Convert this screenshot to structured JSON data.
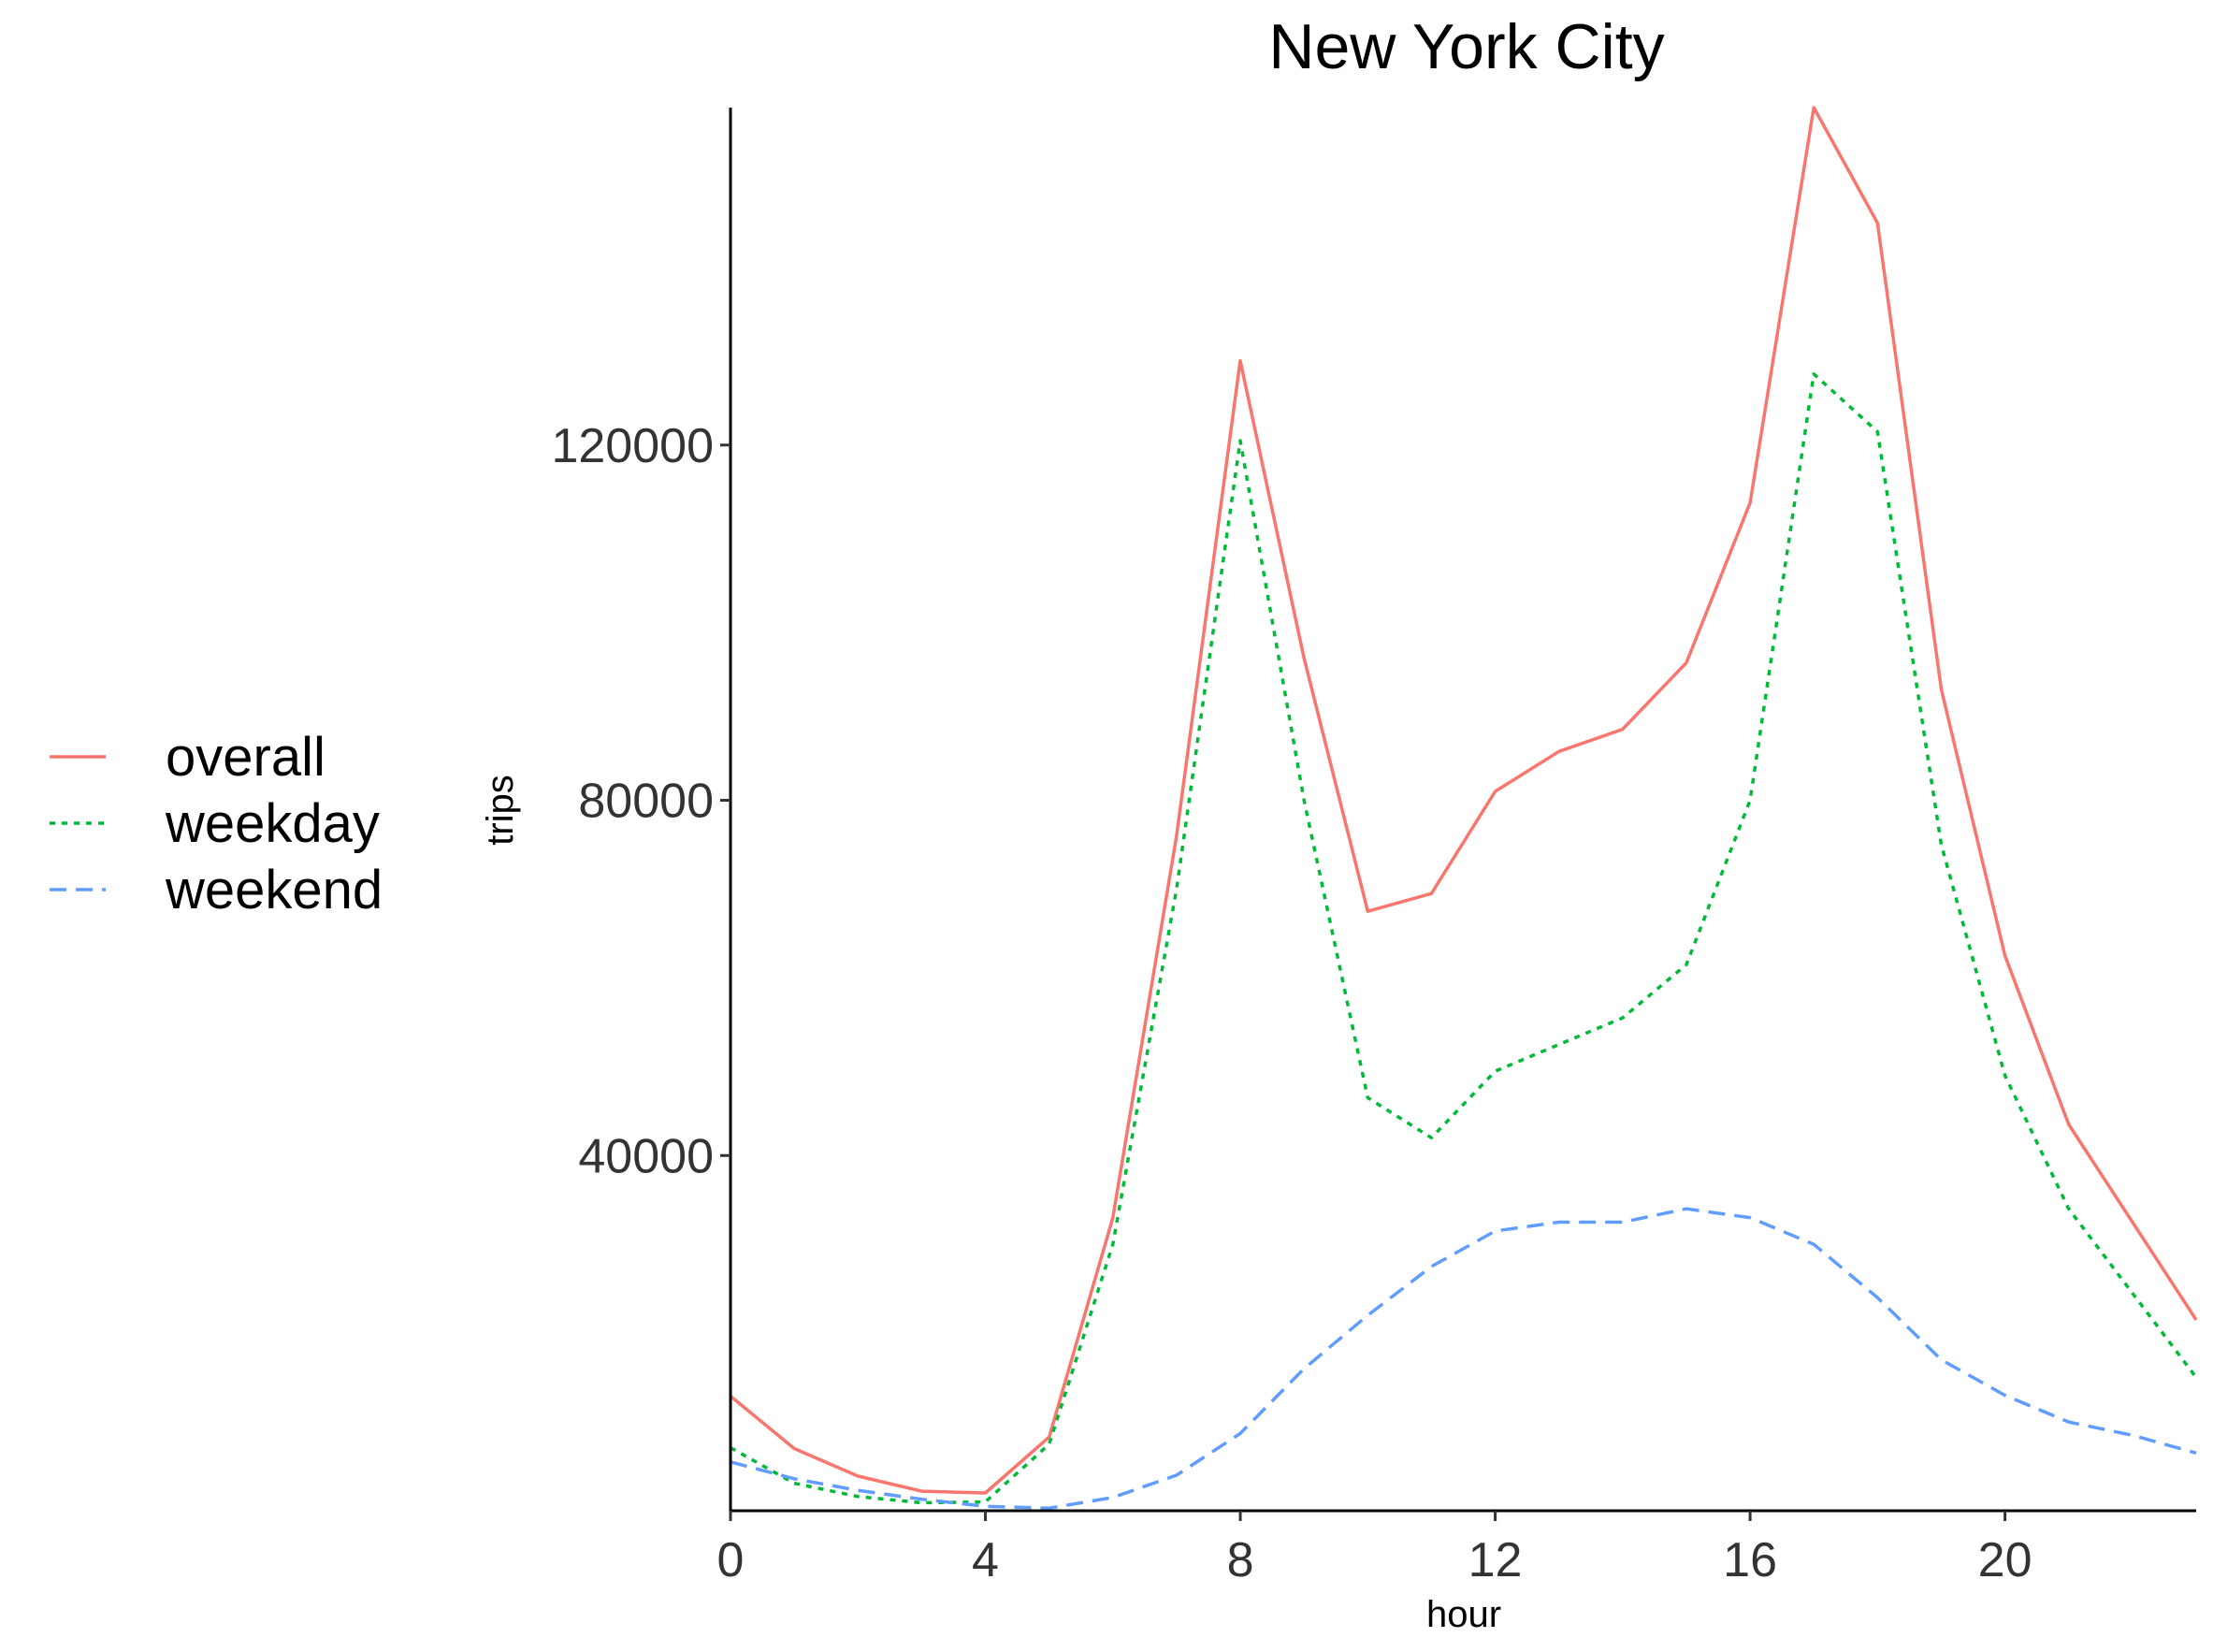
{
  "chart_data": {
    "type": "line",
    "title": "New York City",
    "xlabel": "hour",
    "ylabel": "trips",
    "x": [
      0,
      1,
      2,
      3,
      4,
      5,
      6,
      7,
      8,
      9,
      10,
      11,
      12,
      13,
      14,
      15,
      16,
      17,
      18,
      19,
      20,
      21,
      22,
      23
    ],
    "xticks": [
      0,
      4,
      8,
      12,
      16,
      20
    ],
    "yticks": [
      40000,
      80000,
      120000
    ],
    "xlim": [
      0,
      23
    ],
    "ylim": [
      0,
      158000
    ],
    "grid": false,
    "legend_position": "left",
    "series": [
      {
        "name": "overall",
        "color": "#F8766D",
        "dash": "solid",
        "values": [
          12900,
          7000,
          3900,
          2200,
          2000,
          8300,
          33000,
          76000,
          129500,
          96000,
          67500,
          69500,
          81000,
          85500,
          88000,
          95500,
          113500,
          158000,
          145000,
          92500,
          62500,
          43500,
          32500,
          21500
        ]
      },
      {
        "name": "weekday",
        "color": "#00BA38",
        "dash": "dotted",
        "values": [
          7100,
          3100,
          1600,
          900,
          1000,
          7500,
          30000,
          70000,
          120500,
          80000,
          46500,
          42000,
          49500,
          52500,
          55500,
          61500,
          80000,
          128000,
          121500,
          75000,
          49000,
          34000,
          24500,
          15000
        ]
      },
      {
        "name": "weekend",
        "color": "#619CFF",
        "dash": "dashed",
        "values": [
          5500,
          3600,
          2300,
          1300,
          500,
          300,
          1500,
          4000,
          8700,
          16000,
          22000,
          27500,
          31500,
          32500,
          32500,
          34000,
          33000,
          30000,
          24000,
          17000,
          13000,
          10000,
          8500,
          6500
        ]
      }
    ]
  }
}
